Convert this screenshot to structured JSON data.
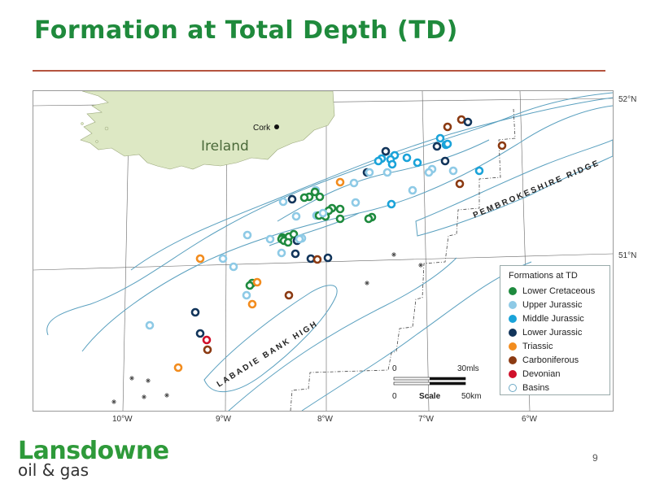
{
  "title": "Formation at Total Depth (TD)",
  "map": {
    "country_label": "Ireland",
    "city_label": "Cork",
    "ridge_label": "PEMBROKESHIRE RIDGE",
    "high_label": "LABADIE BANK HIGH",
    "lat_labels": [
      "52°N",
      "51°N"
    ],
    "lon_labels": [
      "10°W",
      "9°W",
      "8°W",
      "7°W",
      "6°W"
    ]
  },
  "legend": {
    "title": "Formations at TD",
    "items": [
      {
        "label": "Lower Cretaceous",
        "color": "#1e8a3e",
        "icon": "filled-dot"
      },
      {
        "label": "Upper Jurassic",
        "color": "#8ecae6",
        "icon": "filled-dot"
      },
      {
        "label": "Middle Jurassic",
        "color": "#1aa3d9",
        "icon": "filled-dot"
      },
      {
        "label": "Lower Jurassic",
        "color": "#12355b",
        "icon": "filled-dot"
      },
      {
        "label": "Triassic",
        "color": "#f28c1e",
        "icon": "filled-dot"
      },
      {
        "label": "Carboniferous",
        "color": "#8b3a12",
        "icon": "filled-dot"
      },
      {
        "label": "Devonian",
        "color": "#d0102a",
        "icon": "filled-dot"
      },
      {
        "label": "Basins",
        "color": "#6ca9c6",
        "icon": "hollow-circle"
      }
    ]
  },
  "scale": {
    "label": "Scale",
    "top_start": "0",
    "top_end": "30mls",
    "bottom_start": "0",
    "bottom_end": "50km"
  },
  "footer": {
    "logo_main": "Lansdowne",
    "logo_sub": "oil & gas",
    "page_number": "9"
  }
}
